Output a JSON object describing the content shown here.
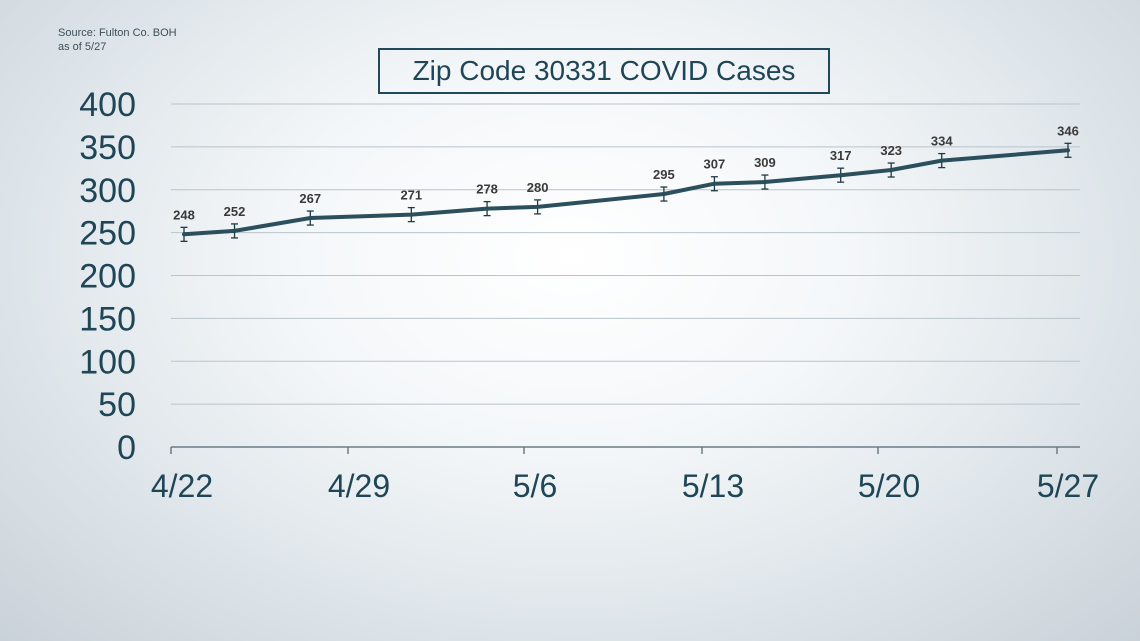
{
  "source": {
    "line1": "Source: Fulton Co. BOH",
    "line2": "as of 5/27"
  },
  "colors": {
    "line": "#2b4f5c",
    "axis_text": "#1f4656",
    "grid": "#b9c4cb",
    "label_text": "#3a3a3a"
  },
  "chart_data": {
    "type": "line",
    "title": "Zip Code 30331 COVID Cases",
    "xlabel": "",
    "ylabel": "",
    "ylim": [
      0,
      400
    ],
    "yticks": [
      0,
      50,
      100,
      150,
      200,
      250,
      300,
      350,
      400
    ],
    "x_ticks": [
      "4/22",
      "4/29",
      "5/6",
      "5/13",
      "5/20",
      "5/27"
    ],
    "grid": true,
    "error_bars": true,
    "series": [
      {
        "points": [
          {
            "x": "4/22",
            "y": 248
          },
          {
            "x": "4/24",
            "y": 252
          },
          {
            "x": "4/27",
            "y": 267
          },
          {
            "x": "5/1",
            "y": 271
          },
          {
            "x": "5/4",
            "y": 278
          },
          {
            "x": "5/6",
            "y": 280
          },
          {
            "x": "5/11",
            "y": 295
          },
          {
            "x": "5/13",
            "y": 307
          },
          {
            "x": "5/15",
            "y": 309
          },
          {
            "x": "5/18",
            "y": 317
          },
          {
            "x": "5/20",
            "y": 323
          },
          {
            "x": "5/22",
            "y": 334
          },
          {
            "x": "5/27",
            "y": 346
          }
        ]
      }
    ]
  }
}
